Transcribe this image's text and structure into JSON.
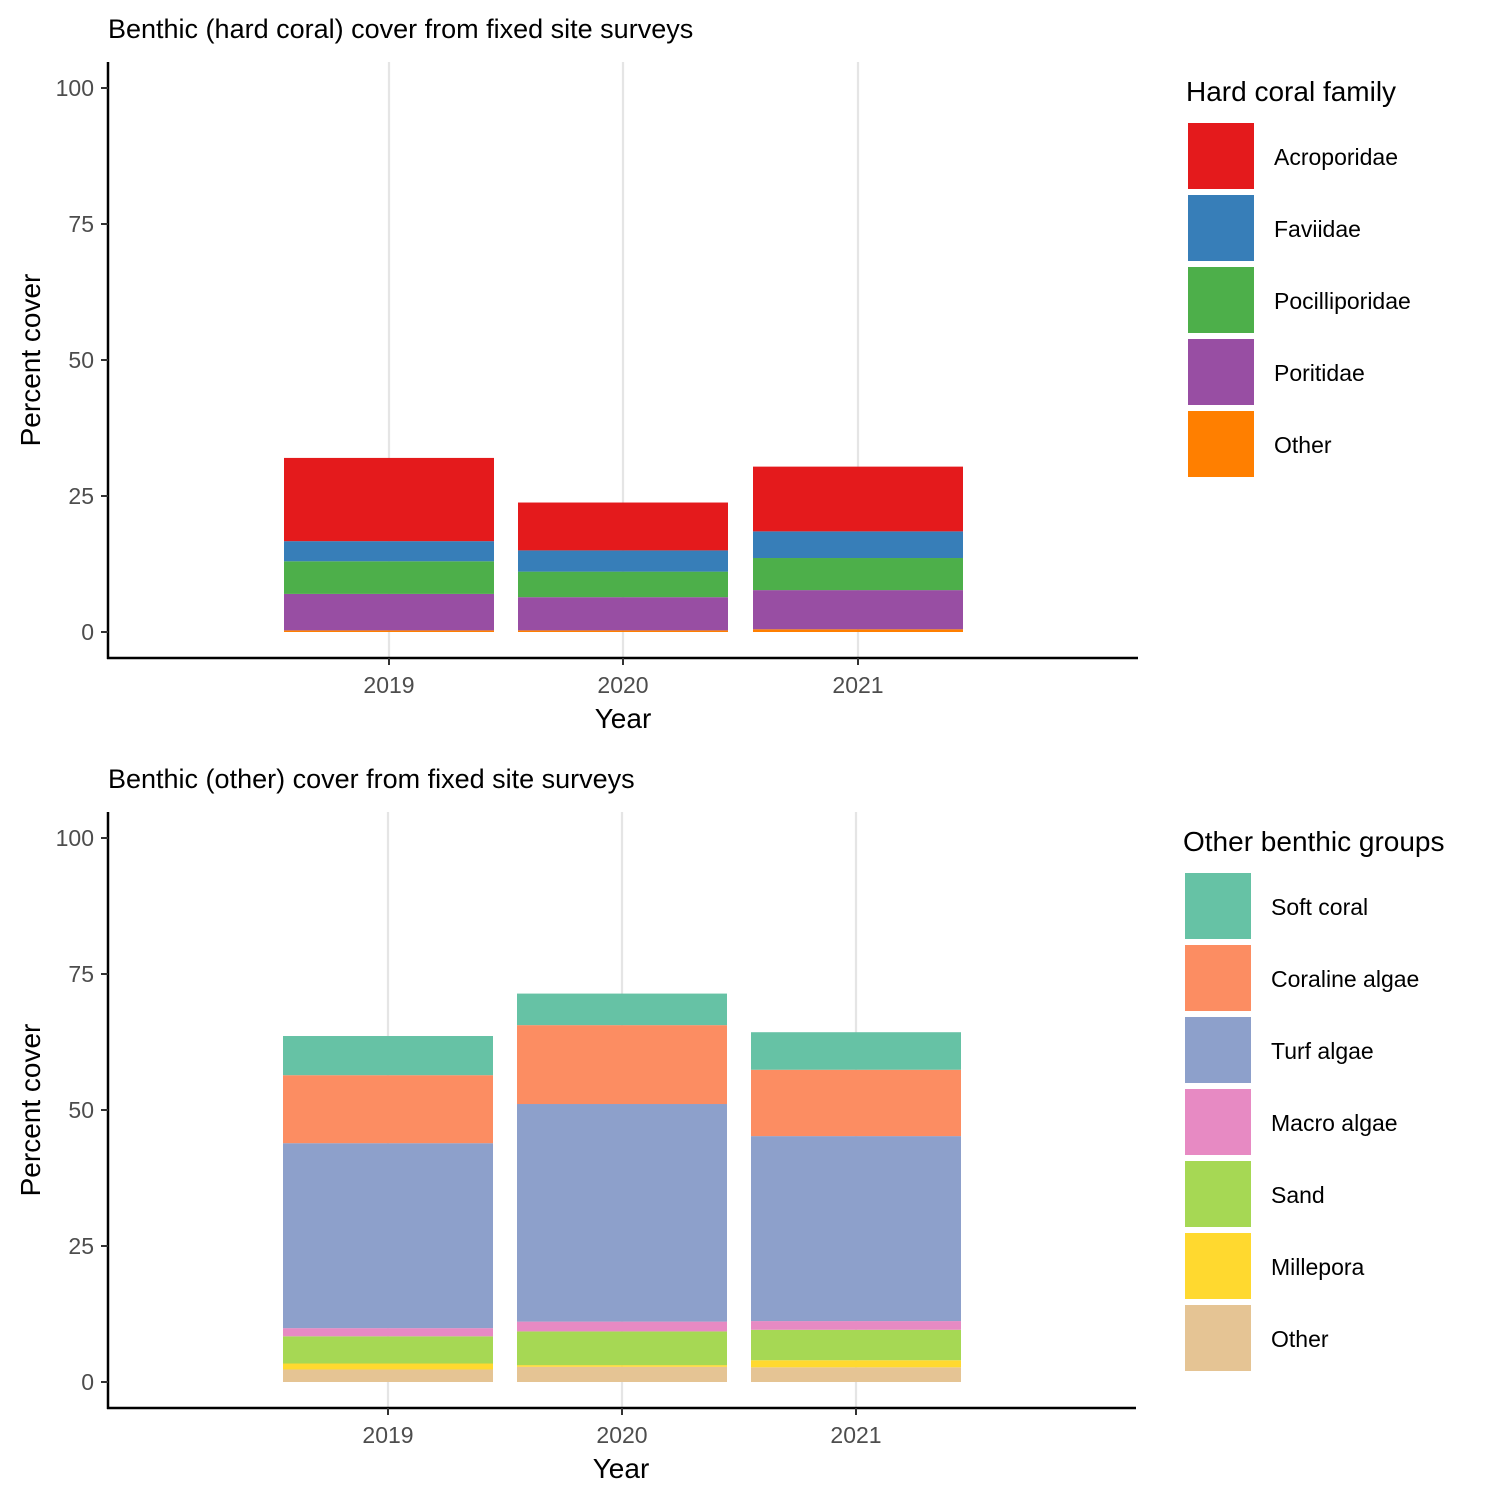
{
  "chart_data": [
    {
      "type": "bar",
      "stacked": true,
      "title": "Benthic (hard coral) cover from fixed site surveys",
      "xlabel": "Year",
      "ylabel": "Percent cover",
      "ylim": [
        0,
        100
      ],
      "yticks": [
        0,
        25,
        50,
        75,
        100
      ],
      "categories": [
        "2019",
        "2020",
        "2021"
      ],
      "legend_title": "Hard coral family",
      "legend_position": "right",
      "grid": "vertical major only",
      "series": [
        {
          "name": "Other",
          "color": "#FF7F00",
          "values": [
            0.3,
            0.3,
            0.5
          ]
        },
        {
          "name": "Poritidae",
          "color": "#984EA3",
          "values": [
            6.7,
            6.1,
            7.2
          ]
        },
        {
          "name": "Pocilliporidae",
          "color": "#4DAF4A",
          "values": [
            6.0,
            4.7,
            5.9
          ]
        },
        {
          "name": "Faviidae",
          "color": "#377EB8",
          "values": [
            3.7,
            3.9,
            4.9
          ]
        },
        {
          "name": "Acroporidae",
          "color": "#E41A1C",
          "values": [
            15.3,
            8.8,
            11.9
          ]
        }
      ],
      "legend_order": [
        "Acroporidae",
        "Faviidae",
        "Pocilliporidae",
        "Poritidae",
        "Other"
      ]
    },
    {
      "type": "bar",
      "stacked": true,
      "title": "Benthic (other) cover from fixed site surveys",
      "xlabel": "Year",
      "ylabel": "Percent cover",
      "ylim": [
        0,
        100
      ],
      "yticks": [
        0,
        25,
        50,
        75,
        100
      ],
      "categories": [
        "2019",
        "2020",
        "2021"
      ],
      "legend_title": "Other benthic groups",
      "legend_position": "right",
      "grid": "vertical major only",
      "series": [
        {
          "name": "Other",
          "color": "#E5C494",
          "values": [
            2.3,
            2.8,
            2.7
          ]
        },
        {
          "name": "Millepora",
          "color": "#FFD92F",
          "values": [
            1.1,
            0.3,
            1.3
          ]
        },
        {
          "name": "Sand",
          "color": "#A6D854",
          "values": [
            5.0,
            6.2,
            5.6
          ]
        },
        {
          "name": "Macro algae",
          "color": "#E78AC3",
          "values": [
            1.5,
            1.8,
            1.6
          ]
        },
        {
          "name": "Turf algae",
          "color": "#8DA0CB",
          "values": [
            34.0,
            40.0,
            34.0
          ]
        },
        {
          "name": "Coraline algae",
          "color": "#FC8D62",
          "values": [
            12.5,
            14.5,
            12.2
          ]
        },
        {
          "name": "Soft coral",
          "color": "#66C2A5",
          "values": [
            7.2,
            5.8,
            6.9
          ]
        }
      ],
      "legend_order": [
        "Soft coral",
        "Coraline algae",
        "Turf algae",
        "Macro algae",
        "Sand",
        "Millepora",
        "Other"
      ]
    }
  ]
}
